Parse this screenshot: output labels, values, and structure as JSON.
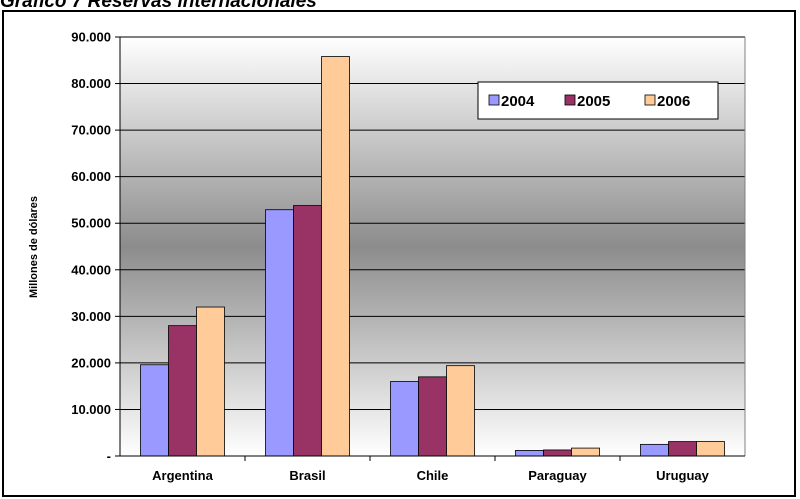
{
  "title": "Gráfico 7 Reservas internacionales",
  "chart_data": {
    "type": "bar",
    "title": "Gráfico 7 Reservas internacionales",
    "ylabel": "Millones de dólares",
    "xlabel": "",
    "categories": [
      "Argentina",
      "Brasil",
      "Chile",
      "Paraguay",
      "Uruguay"
    ],
    "series": [
      {
        "name": "2004",
        "color": "#9999ff",
        "values": [
          19600,
          52900,
          16000,
          1200,
          2500
        ]
      },
      {
        "name": "2005",
        "color": "#993366",
        "values": [
          28000,
          53800,
          17000,
          1300,
          3100
        ]
      },
      {
        "name": "2006",
        "color": "#ffcc99",
        "values": [
          32000,
          85800,
          19400,
          1700,
          3100
        ]
      }
    ],
    "ylim": [
      0,
      90000
    ],
    "yticks": [
      0,
      10000,
      20000,
      30000,
      40000,
      50000,
      60000,
      70000,
      80000,
      90000
    ],
    "ytick_labels": [
      "-",
      "10.000",
      "20.000",
      "30.000",
      "40.000",
      "50.000",
      "60.000",
      "70.000",
      "80.000",
      "90.000"
    ],
    "grid": true,
    "legend": "top-right",
    "background": "gradient gray"
  }
}
